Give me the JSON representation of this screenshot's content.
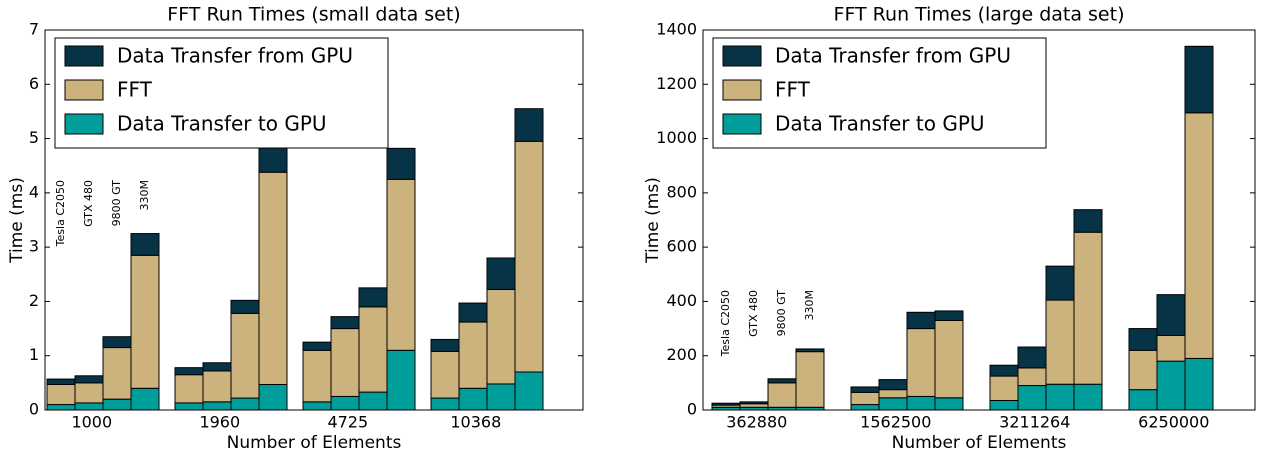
{
  "chart_data": [
    {
      "type": "bar",
      "stacked": true,
      "title": "FFT Run Times (small data set)",
      "xlabel": "Number of Elements",
      "ylabel": "Time (ms)",
      "categories": [
        "1000",
        "1960",
        "4725",
        "10368"
      ],
      "bar_labels": [
        "Tesla C2050",
        "GTX 480",
        "9800 GT",
        "330M"
      ],
      "series": [
        {
          "name": "Data Transfer to GPU",
          "color": "#009e9a",
          "values": [
            [
              0.1,
              0.13,
              0.2,
              0.4
            ],
            [
              0.13,
              0.15,
              0.22,
              0.47
            ],
            [
              0.15,
              0.25,
              0.33,
              1.1
            ],
            [
              0.22,
              0.4,
              0.48,
              0.7
            ]
          ]
        },
        {
          "name": "FFT",
          "color": "#ccb27c",
          "values": [
            [
              0.37,
              0.37,
              0.95,
              2.45
            ],
            [
              0.52,
              0.57,
              1.56,
              3.91
            ],
            [
              0.95,
              1.25,
              1.57,
              3.15
            ],
            [
              0.86,
              1.22,
              1.74,
              4.25
            ]
          ]
        },
        {
          "name": "Data Transfer from GPU",
          "color": "#073347",
          "values": [
            [
              0.1,
              0.13,
              0.2,
              0.4
            ],
            [
              0.13,
              0.15,
              0.24,
              0.45
            ],
            [
              0.15,
              0.22,
              0.35,
              0.57
            ],
            [
              0.22,
              0.35,
              0.58,
              0.6
            ]
          ]
        }
      ],
      "ylim": [
        0,
        7
      ],
      "yticks": [
        0,
        1,
        2,
        3,
        4,
        5,
        6,
        7
      ],
      "legend": "upper-left"
    },
    {
      "type": "bar",
      "stacked": true,
      "title": "FFT Run Times (large data set)",
      "xlabel": "Number of Elements",
      "ylabel": "Time (ms)",
      "categories": [
        "362880",
        "1562500",
        "3211264",
        "6250000"
      ],
      "bar_labels": [
        "Tesla C2050",
        "GTX 480",
        "9800 GT",
        "330M"
      ],
      "series": [
        {
          "name": "Data Transfer to GPU",
          "color": "#009e9a",
          "values": [
            [
              10,
              10,
              10,
              10
            ],
            [
              20,
              45,
              50,
              45
            ],
            [
              35,
              90,
              95,
              95
            ],
            [
              75,
              180,
              190,
              null
            ]
          ]
        },
        {
          "name": "FFT",
          "color": "#ccb27c",
          "values": [
            [
              8,
              13,
              90,
              205
            ],
            [
              45,
              30,
              250,
              285
            ],
            [
              90,
              65,
              310,
              560
            ],
            [
              145,
              95,
              905,
              null
            ]
          ]
        },
        {
          "name": "Data Transfer from GPU",
          "color": "#073347",
          "values": [
            [
              7,
              7,
              15,
              10
            ],
            [
              20,
              37,
              60,
              35
            ],
            [
              40,
              77,
              125,
              83
            ],
            [
              80,
              150,
              245,
              null
            ]
          ]
        }
      ],
      "ylim": [
        0,
        1400
      ],
      "yticks": [
        0,
        200,
        400,
        600,
        800,
        1000,
        1200,
        1400
      ],
      "legend": "upper-left"
    }
  ]
}
